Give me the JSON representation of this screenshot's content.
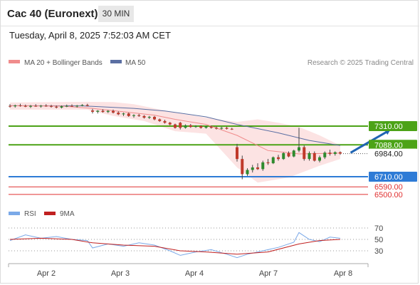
{
  "header": {
    "title": "Cac 40 (Euronext)",
    "timeframe": "30 MIN",
    "datetime": "Tuesday, April 8, 2025 7:52:03 AM CET"
  },
  "legend": {
    "ma20_label": "MA 20 + Bollinger Bands",
    "ma50_label": "MA 50",
    "rsi_label": "RSI",
    "ma9_label": "9MA",
    "credit": "Research © 2025 Trading Central"
  },
  "colors": {
    "green": "#4ca317",
    "blue": "#2e7bd6",
    "red": "#e03030",
    "bollinger": "#fbdada",
    "ma20": "#f08c8c",
    "ma50": "#5b6fa3",
    "arrow": "#1f64b3",
    "rsi": "#7ba9e8",
    "rsi_ma": "#c02020"
  },
  "chart_data": {
    "type": "candlestick",
    "x_ticks": [
      "Apr 2",
      "Apr 3",
      "Apr 4",
      "Apr 7",
      "Apr 8"
    ],
    "ylim": [
      6440,
      7690
    ],
    "levels": [
      {
        "value": 7310.0,
        "label": "7310.00",
        "kind": "resistance",
        "color": "#4ca317"
      },
      {
        "value": 7088.0,
        "label": "7088.00",
        "kind": "resistance",
        "color": "#4ca317"
      },
      {
        "value": 6984.0,
        "label": "6984.00",
        "kind": "last_price",
        "color": "#222222"
      },
      {
        "value": 6710.0,
        "label": "6710.00",
        "kind": "support",
        "color": "#2e7bd6"
      },
      {
        "value": 6590.0,
        "label": "6590.00",
        "kind": "support",
        "color": "#e03030"
      },
      {
        "value": 6500.0,
        "label": "6500.00",
        "kind": "support",
        "color": "#e03030"
      }
    ],
    "forecast_arrow": {
      "from": [
        66,
        6995
      ],
      "to": [
        74,
        7300
      ]
    },
    "price": [
      {
        "x": 0,
        "o": 7550,
        "h": 7570,
        "l": 7530,
        "c": 7545
      },
      {
        "x": 1,
        "o": 7545,
        "h": 7565,
        "l": 7530,
        "c": 7555
      },
      {
        "x": 2,
        "o": 7555,
        "h": 7575,
        "l": 7540,
        "c": 7550
      },
      {
        "x": 3,
        "o": 7550,
        "h": 7565,
        "l": 7535,
        "c": 7540
      },
      {
        "x": 4,
        "o": 7540,
        "h": 7560,
        "l": 7525,
        "c": 7550
      },
      {
        "x": 5,
        "o": 7550,
        "h": 7570,
        "l": 7540,
        "c": 7545
      },
      {
        "x": 6,
        "o": 7545,
        "h": 7560,
        "l": 7530,
        "c": 7552
      },
      {
        "x": 7,
        "o": 7552,
        "h": 7570,
        "l": 7540,
        "c": 7548
      },
      {
        "x": 8,
        "o": 7548,
        "h": 7562,
        "l": 7530,
        "c": 7540
      },
      {
        "x": 9,
        "o": 7540,
        "h": 7555,
        "l": 7520,
        "c": 7530
      },
      {
        "x": 10,
        "o": 7530,
        "h": 7555,
        "l": 7520,
        "c": 7545
      },
      {
        "x": 11,
        "o": 7545,
        "h": 7565,
        "l": 7535,
        "c": 7550
      },
      {
        "x": 12,
        "o": 7550,
        "h": 7568,
        "l": 7538,
        "c": 7544
      },
      {
        "x": 13,
        "o": 7544,
        "h": 7560,
        "l": 7530,
        "c": 7552
      },
      {
        "x": 14,
        "o": 7552,
        "h": 7570,
        "l": 7545,
        "c": 7560
      },
      {
        "x": 15,
        "o": 7560,
        "h": 7575,
        "l": 7545,
        "c": 7550
      },
      {
        "x": 16,
        "o": 7495,
        "h": 7515,
        "l": 7460,
        "c": 7480
      },
      {
        "x": 17,
        "o": 7480,
        "h": 7500,
        "l": 7460,
        "c": 7492
      },
      {
        "x": 18,
        "o": 7492,
        "h": 7510,
        "l": 7470,
        "c": 7478
      },
      {
        "x": 19,
        "o": 7478,
        "h": 7500,
        "l": 7465,
        "c": 7490
      },
      {
        "x": 20,
        "o": 7490,
        "h": 7505,
        "l": 7460,
        "c": 7470
      },
      {
        "x": 21,
        "o": 7470,
        "h": 7485,
        "l": 7440,
        "c": 7450
      },
      {
        "x": 22,
        "o": 7450,
        "h": 7470,
        "l": 7430,
        "c": 7460
      },
      {
        "x": 23,
        "o": 7460,
        "h": 7470,
        "l": 7420,
        "c": 7430
      },
      {
        "x": 24,
        "o": 7430,
        "h": 7450,
        "l": 7410,
        "c": 7440
      },
      {
        "x": 25,
        "o": 7440,
        "h": 7455,
        "l": 7420,
        "c": 7430
      },
      {
        "x": 26,
        "o": 7430,
        "h": 7440,
        "l": 7400,
        "c": 7410
      },
      {
        "x": 27,
        "o": 7410,
        "h": 7430,
        "l": 7395,
        "c": 7420
      },
      {
        "x": 28,
        "o": 7420,
        "h": 7430,
        "l": 7380,
        "c": 7390
      },
      {
        "x": 29,
        "o": 7390,
        "h": 7400,
        "l": 7360,
        "c": 7370
      },
      {
        "x": 30,
        "o": 7370,
        "h": 7385,
        "l": 7340,
        "c": 7350
      },
      {
        "x": 31,
        "o": 7350,
        "h": 7360,
        "l": 7320,
        "c": 7330
      },
      {
        "x": 32,
        "o": 7330,
        "h": 7340,
        "l": 7280,
        "c": 7290
      },
      {
        "x": 33,
        "o": 7350,
        "h": 7360,
        "l": 7270,
        "c": 7290
      },
      {
        "x": 34,
        "o": 7290,
        "h": 7330,
        "l": 7280,
        "c": 7320
      },
      {
        "x": 35,
        "o": 7320,
        "h": 7335,
        "l": 7290,
        "c": 7300
      },
      {
        "x": 36,
        "o": 7300,
        "h": 7320,
        "l": 7290,
        "c": 7310
      },
      {
        "x": 37,
        "o": 7310,
        "h": 7320,
        "l": 7280,
        "c": 7290
      },
      {
        "x": 38,
        "o": 7290,
        "h": 7315,
        "l": 7280,
        "c": 7305
      },
      {
        "x": 39,
        "o": 7305,
        "h": 7315,
        "l": 7280,
        "c": 7290
      },
      {
        "x": 40,
        "o": 7290,
        "h": 7305,
        "l": 7270,
        "c": 7280
      },
      {
        "x": 41,
        "o": 7280,
        "h": 7300,
        "l": 7270,
        "c": 7290
      },
      {
        "x": 42,
        "o": 7290,
        "h": 7300,
        "l": 7270,
        "c": 7278
      },
      {
        "x": 43,
        "o": 7278,
        "h": 7290,
        "l": 7265,
        "c": 7270
      },
      {
        "x": 44,
        "o": 7060,
        "h": 7100,
        "l": 6890,
        "c": 6920
      },
      {
        "x": 45,
        "o": 6920,
        "h": 6960,
        "l": 6680,
        "c": 6740
      },
      {
        "x": 46,
        "o": 6740,
        "h": 6810,
        "l": 6720,
        "c": 6790
      },
      {
        "x": 47,
        "o": 6790,
        "h": 6850,
        "l": 6760,
        "c": 6820
      },
      {
        "x": 48,
        "o": 6820,
        "h": 6870,
        "l": 6790,
        "c": 6800
      },
      {
        "x": 49,
        "o": 6800,
        "h": 6900,
        "l": 6780,
        "c": 6880
      },
      {
        "x": 50,
        "o": 6880,
        "h": 6920,
        "l": 6850,
        "c": 6870
      },
      {
        "x": 51,
        "o": 6870,
        "h": 6950,
        "l": 6860,
        "c": 6940
      },
      {
        "x": 52,
        "o": 6940,
        "h": 6970,
        "l": 6900,
        "c": 6920
      },
      {
        "x": 53,
        "o": 6920,
        "h": 7000,
        "l": 6910,
        "c": 6990
      },
      {
        "x": 54,
        "o": 6990,
        "h": 7010,
        "l": 6940,
        "c": 6950
      },
      {
        "x": 55,
        "o": 6950,
        "h": 7030,
        "l": 6940,
        "c": 7020
      },
      {
        "x": 56,
        "o": 7020,
        "h": 7290,
        "l": 7000,
        "c": 7060
      },
      {
        "x": 57,
        "o": 7060,
        "h": 7080,
        "l": 6900,
        "c": 6920
      },
      {
        "x": 58,
        "o": 6920,
        "h": 7010,
        "l": 6900,
        "c": 6990
      },
      {
        "x": 59,
        "o": 6990,
        "h": 7010,
        "l": 6890,
        "c": 6900
      },
      {
        "x": 60,
        "o": 6900,
        "h": 6960,
        "l": 6880,
        "c": 6940
      },
      {
        "x": 61,
        "o": 6940,
        "h": 7010,
        "l": 6920,
        "c": 6995
      },
      {
        "x": 62,
        "o": 6995,
        "h": 7030,
        "l": 6960,
        "c": 6980
      },
      {
        "x": 63,
        "o": 6980,
        "h": 7010,
        "l": 6960,
        "c": 7000
      },
      {
        "x": 64,
        "o": 7000,
        "h": 7010,
        "l": 6970,
        "c": 6984
      }
    ],
    "ma20": [
      [
        0,
        7552
      ],
      [
        10,
        7548
      ],
      [
        16,
        7520
      ],
      [
        22,
        7480
      ],
      [
        28,
        7440
      ],
      [
        32,
        7390
      ],
      [
        38,
        7330
      ],
      [
        44,
        7200
      ],
      [
        50,
        7020
      ],
      [
        56,
        6980
      ],
      [
        64,
        6990
      ]
    ],
    "ma50": [
      [
        0,
        7552
      ],
      [
        14,
        7550
      ],
      [
        24,
        7520
      ],
      [
        30,
        7490
      ],
      [
        38,
        7420
      ],
      [
        44,
        7330
      ],
      [
        52,
        7230
      ],
      [
        58,
        7140
      ],
      [
        64,
        7080
      ]
    ],
    "bollinger_upper": [
      [
        0,
        7590
      ],
      [
        15,
        7598
      ],
      [
        20,
        7595
      ],
      [
        24,
        7570
      ],
      [
        28,
        7520
      ],
      [
        32,
        7470
      ],
      [
        38,
        7410
      ],
      [
        44,
        7360
      ],
      [
        48,
        7390
      ],
      [
        52,
        7350
      ],
      [
        56,
        7300
      ],
      [
        60,
        7200
      ],
      [
        64,
        7080
      ]
    ],
    "bollinger_lower": [
      [
        0,
        7505
      ],
      [
        15,
        7505
      ],
      [
        20,
        7430
      ],
      [
        26,
        7370
      ],
      [
        32,
        7250
      ],
      [
        38,
        7220
      ],
      [
        44,
        6820
      ],
      [
        48,
        6640
      ],
      [
        54,
        6700
      ],
      [
        60,
        6840
      ],
      [
        64,
        6920
      ]
    ],
    "rsi": {
      "ticks": [
        70,
        50,
        30
      ],
      "ylim": [
        0,
        100
      ],
      "values": [
        [
          0,
          48
        ],
        [
          3,
          58
        ],
        [
          6,
          52
        ],
        [
          9,
          55
        ],
        [
          12,
          50
        ],
        [
          15,
          48
        ],
        [
          16,
          35
        ],
        [
          19,
          42
        ],
        [
          22,
          38
        ],
        [
          25,
          44
        ],
        [
          28,
          40
        ],
        [
          31,
          30
        ],
        [
          33,
          22
        ],
        [
          36,
          28
        ],
        [
          39,
          32
        ],
        [
          42,
          24
        ],
        [
          44,
          18
        ],
        [
          46,
          24
        ],
        [
          49,
          30
        ],
        [
          52,
          36
        ],
        [
          55,
          45
        ],
        [
          56,
          62
        ],
        [
          58,
          50
        ],
        [
          60,
          46
        ],
        [
          62,
          54
        ],
        [
          64,
          52
        ]
      ],
      "ma": [
        [
          0,
          50
        ],
        [
          6,
          52
        ],
        [
          12,
          50
        ],
        [
          16,
          44
        ],
        [
          22,
          40
        ],
        [
          28,
          38
        ],
        [
          33,
          30
        ],
        [
          38,
          28
        ],
        [
          44,
          24
        ],
        [
          50,
          28
        ],
        [
          56,
          42
        ],
        [
          60,
          48
        ],
        [
          64,
          50
        ]
      ]
    }
  }
}
